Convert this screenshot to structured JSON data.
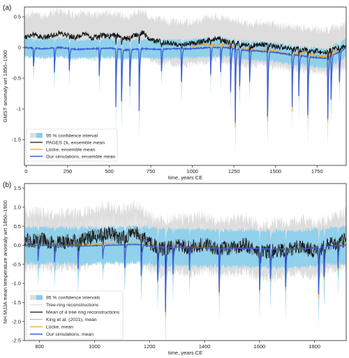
{
  "chart_data": [
    {
      "type": "line",
      "panel_label": "(a)",
      "xlabel": "time, years CE",
      "ylabel": "GMST anomaly wrt 1850–1900",
      "xlim": [
        -10,
        1925
      ],
      "ylim": [
        -1.92,
        0.66
      ],
      "xticks": [
        0,
        250,
        500,
        750,
        1000,
        1250,
        1500,
        1750
      ],
      "yticks": [
        -1.5,
        -1.0,
        -0.5,
        0,
        0.5
      ],
      "legend_position": "lower-left",
      "legend": [
        "95 % confidence interval",
        "PAGES 2k, ensemble mean",
        "Lücke, ensemble mean",
        "Our simulations, ensemble mean"
      ],
      "series_colors": {
        "gray_band": "#dddddd",
        "blue_band": "#87ceeb",
        "pages2k": "#111111",
        "lucke": "#f0a030",
        "ours": "#3a5fd9"
      },
      "series": [
        {
          "name": "PAGES 2k, ensemble mean",
          "x": [
            0,
            50,
            100,
            150,
            200,
            250,
            300,
            350,
            400,
            450,
            500,
            550,
            600,
            650,
            700,
            750,
            800,
            850,
            900,
            950,
            1000,
            1050,
            1100,
            1150,
            1200,
            1250,
            1300,
            1350,
            1400,
            1450,
            1500,
            1550,
            1600,
            1650,
            1700,
            1750,
            1800,
            1850,
            1900,
            1920
          ],
          "values": [
            0.18,
            0.22,
            0.15,
            0.2,
            0.24,
            0.2,
            0.16,
            0.22,
            0.15,
            0.2,
            0.18,
            0.21,
            0.14,
            0.2,
            0.25,
            0.12,
            0.1,
            0.08,
            0.06,
            0.05,
            0.07,
            0.09,
            0.12,
            0.15,
            0.1,
            0.08,
            0.05,
            0.02,
            0.06,
            0.04,
            0.02,
            0.0,
            -0.02,
            -0.03,
            -0.05,
            -0.06,
            -0.08,
            -0.02,
            0.0,
            0.02
          ]
        },
        {
          "name": "Lücke, ensemble mean",
          "x": [
            1000,
            1050,
            1100,
            1150,
            1200,
            1250,
            1300,
            1350,
            1400,
            1450,
            1500,
            1550,
            1600,
            1650,
            1700,
            1750,
            1800,
            1850,
            1900,
            1920
          ],
          "values": [
            0.02,
            0.05,
            0.04,
            0.05,
            0.06,
            0.02,
            -0.04,
            -0.02,
            -0.06,
            -0.03,
            -0.06,
            -0.1,
            -0.12,
            -0.08,
            -0.1,
            -0.13,
            -0.15,
            -0.06,
            -0.02,
            0.02
          ]
        },
        {
          "name": "Our simulations, ensemble mean",
          "x": [
            0,
            100,
            200,
            300,
            400,
            500,
            600,
            700,
            800,
            900,
            1000,
            1100,
            1200,
            1300,
            1400,
            1500,
            1600,
            1700,
            1800,
            1900,
            1920
          ],
          "values": [
            0.0,
            -0.02,
            0.0,
            -0.03,
            -0.02,
            -0.01,
            -0.04,
            -0.02,
            -0.03,
            -0.02,
            -0.02,
            0.0,
            0.0,
            -0.04,
            -0.06,
            -0.08,
            -0.12,
            -0.15,
            -0.18,
            -0.05,
            0.0
          ],
          "eruption_dips": [
            [
              45,
              -0.3
            ],
            [
              170,
              -0.4
            ],
            [
              260,
              -0.35
            ],
            [
              440,
              -0.45
            ],
            [
              540,
              -0.95
            ],
            [
              575,
              -0.85
            ],
            [
              625,
              -0.6
            ],
            [
              680,
              -1.0
            ],
            [
              815,
              -0.35
            ],
            [
              935,
              -0.55
            ],
            [
              1110,
              -0.45
            ],
            [
              1170,
              -0.4
            ],
            [
              1230,
              -0.7
            ],
            [
              1258,
              -1.2
            ],
            [
              1285,
              -0.6
            ],
            [
              1345,
              -0.5
            ],
            [
              1453,
              -1.05
            ],
            [
              1600,
              -0.85
            ],
            [
              1640,
              -0.65
            ],
            [
              1695,
              -0.95
            ],
            [
              1815,
              -1.0
            ],
            [
              1835,
              -0.7
            ],
            [
              1885,
              -0.5
            ]
          ]
        }
      ]
    },
    {
      "type": "line",
      "panel_label": "(b)",
      "xlabel": "time, years CE",
      "ylabel": "NH MJJA mean temperature anomaly wrt 1850–1900",
      "xlim": [
        745,
        1915
      ],
      "ylim": [
        -2.5,
        1.62
      ],
      "xticks": [
        800,
        1000,
        1200,
        1400,
        1600,
        1800
      ],
      "yticks": [
        -2.5,
        -2.0,
        -1.5,
        -1.0,
        -0.5,
        0.0,
        0.5,
        1.0,
        1.5
      ],
      "legend_position": "lower-left",
      "legend": [
        "95 % confidence intervals",
        "Tree-ring reconstructions",
        "Mean of 4 tree ring reconstructions",
        "King et al. (2021), mean",
        "Lücke, mean",
        "Our simulations, mean"
      ],
      "series_colors": {
        "gray_band": "#dddddd",
        "blue_band": "#87ceeb",
        "tree_rings": "#eeeeee",
        "mean4": "#111111",
        "king": "#444444",
        "lucke": "#f0a030",
        "ours": "#3a5fd9"
      },
      "series": [
        {
          "name": "Mean of 4 tree ring reconstructions",
          "x": [
            750,
            800,
            850,
            900,
            950,
            1000,
            1050,
            1100,
            1150,
            1200,
            1250,
            1300,
            1350,
            1400,
            1450,
            1500,
            1550,
            1600,
            1650,
            1700,
            1750,
            1800,
            1850,
            1900,
            1915
          ],
          "values": [
            0.1,
            0.15,
            0.05,
            0.12,
            0.1,
            0.25,
            0.3,
            0.2,
            0.35,
            0.05,
            -0.1,
            0.0,
            -0.05,
            0.05,
            -0.1,
            -0.05,
            0.0,
            -0.2,
            -0.15,
            -0.1,
            -0.05,
            -0.15,
            0.0,
            0.1,
            0.15
          ]
        },
        {
          "name": "Lücke, mean",
          "x": [
            750,
            850,
            950,
            1050,
            1150,
            1250,
            1350,
            1450,
            1550,
            1650,
            1750,
            1850,
            1915
          ],
          "values": [
            0.05,
            0.05,
            0.02,
            0.05,
            0.05,
            0.0,
            -0.02,
            -0.05,
            -0.05,
            -0.08,
            -0.08,
            -0.02,
            0.02
          ]
        },
        {
          "name": "Our simulations, mean",
          "x": [
            750,
            850,
            950,
            1050,
            1150,
            1250,
            1350,
            1450,
            1550,
            1650,
            1750,
            1850,
            1915
          ],
          "values": [
            0.0,
            0.0,
            -0.02,
            0.0,
            0.02,
            -0.05,
            -0.05,
            -0.08,
            -0.08,
            -0.1,
            -0.1,
            -0.02,
            0.0
          ],
          "eruption_dips": [
            [
              795,
              -0.4
            ],
            [
              855,
              -0.45
            ],
            [
              940,
              -0.6
            ],
            [
              1030,
              -0.35
            ],
            [
              1110,
              -0.6
            ],
            [
              1170,
              -0.8
            ],
            [
              1230,
              -0.9
            ],
            [
              1258,
              -1.7
            ],
            [
              1285,
              -0.7
            ],
            [
              1345,
              -0.6
            ],
            [
              1453,
              -1.15
            ],
            [
              1600,
              -1.1
            ],
            [
              1640,
              -0.8
            ],
            [
              1695,
              -1.0
            ],
            [
              1815,
              -1.25
            ],
            [
              1835,
              -0.8
            ],
            [
              1885,
              -0.6
            ]
          ]
        }
      ]
    }
  ]
}
